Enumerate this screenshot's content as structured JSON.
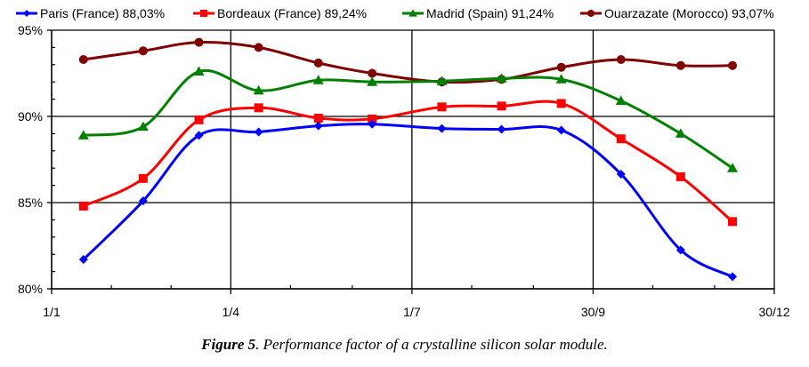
{
  "chart_data": {
    "type": "line",
    "title": "",
    "xlabel": "",
    "ylabel": "",
    "x_unit": "day of year",
    "xlim": [
      1,
      364
    ],
    "ylim": [
      80,
      95
    ],
    "x_ticks": [
      {
        "value": 1,
        "label": "1/1"
      },
      {
        "value": 91,
        "label": "1/4"
      },
      {
        "value": 182,
        "label": "1/7"
      },
      {
        "value": 273,
        "label": "30/9"
      },
      {
        "value": 364,
        "label": "30/12"
      }
    ],
    "x_minor_ticks": [
      31,
      61,
      121,
      152,
      212,
      243,
      303,
      334
    ],
    "y_ticks": [
      {
        "value": 95,
        "label": "95%"
      },
      {
        "value": 90,
        "label": "90%"
      },
      {
        "value": 85,
        "label": "85%"
      },
      {
        "value": 80,
        "label": "80%"
      }
    ],
    "y_minor_step": 1,
    "grid": true,
    "legend_position": "top",
    "x": [
      17,
      47,
      75,
      105,
      135,
      162,
      197,
      227,
      257,
      287,
      317,
      343
    ],
    "series": [
      {
        "name": "Paris (France) 88,03%",
        "color": "#0000ff",
        "marker": "diamond",
        "values": [
          81.7,
          85.1,
          88.9,
          89.1,
          89.45,
          89.55,
          89.3,
          89.25,
          89.2,
          86.65,
          82.25,
          80.7
        ]
      },
      {
        "name": "Bordeaux (France) 89,24%",
        "color": "#ff0000",
        "marker": "square",
        "values": [
          84.8,
          86.4,
          89.8,
          90.5,
          89.9,
          89.85,
          90.55,
          90.6,
          90.75,
          88.7,
          86.5,
          83.9
        ]
      },
      {
        "name": "Madrid (Spain) 91,24%",
        "color": "#008000",
        "marker": "triangle",
        "values": [
          88.9,
          89.4,
          92.6,
          91.5,
          92.1,
          92.0,
          92.05,
          92.2,
          92.15,
          90.9,
          89.0,
          87.0
        ]
      },
      {
        "name": "Ouarzazate (Morocco) 93,07%",
        "color": "#800000",
        "marker": "circle",
        "values": [
          93.3,
          93.8,
          94.3,
          94.0,
          93.1,
          92.5,
          92.0,
          92.15,
          92.85,
          93.3,
          92.95,
          92.95
        ]
      }
    ]
  },
  "caption": {
    "label": "Figure 5",
    "text": ". Performance factor of a crystalline silicon solar module."
  }
}
